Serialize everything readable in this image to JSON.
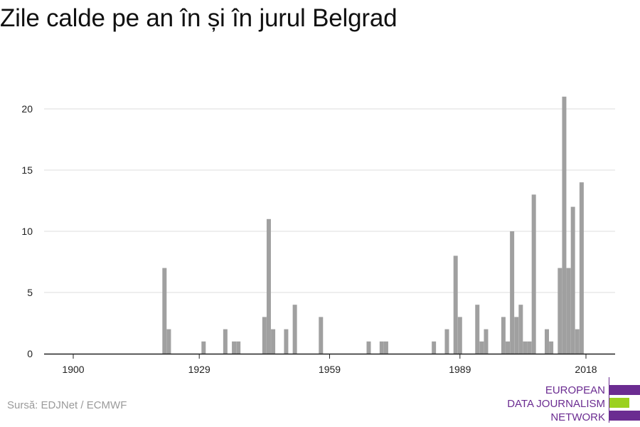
{
  "chart_data": {
    "type": "bar",
    "title": "Zile calde pe an în și în jurul Belgrad",
    "xlabel": "",
    "ylabel": "",
    "x_ticks": [
      1900,
      1929,
      1959,
      1989,
      2018
    ],
    "y_ticks": [
      0,
      5,
      10,
      15,
      20
    ],
    "xlim": [
      1900,
      2018
    ],
    "ylim": [
      0,
      21
    ],
    "grid": true,
    "bar_color": "#a0a0a0",
    "x": [
      1921,
      1922,
      1930,
      1935,
      1937,
      1938,
      1944,
      1945,
      1946,
      1949,
      1951,
      1957,
      1968,
      1971,
      1972,
      1983,
      1986,
      1988,
      1989,
      1993,
      1994,
      1995,
      1999,
      2000,
      2001,
      2002,
      2003,
      2004,
      2005,
      2006,
      2009,
      2010,
      2012,
      2013,
      2014,
      2015,
      2016,
      2017
    ],
    "values": [
      7,
      2,
      1,
      2,
      1,
      1,
      3,
      11,
      2,
      2,
      4,
      3,
      1,
      1,
      1,
      1,
      2,
      8,
      3,
      4,
      1,
      2,
      3,
      1,
      10,
      3,
      4,
      1,
      1,
      13,
      2,
      1,
      7,
      21,
      7,
      12,
      2,
      14
    ]
  },
  "source": "Sursă: EDJNet / ECMWF",
  "logo": {
    "lines": [
      "EUROPEAN",
      "DATA JOURNALISM",
      "NETWORK"
    ],
    "colors": {
      "purple": "#6b2c91",
      "green": "#9bd11f"
    }
  },
  "colors": {
    "grid": "#dddddd",
    "axis": "#222222",
    "tick_text": "#222222"
  }
}
